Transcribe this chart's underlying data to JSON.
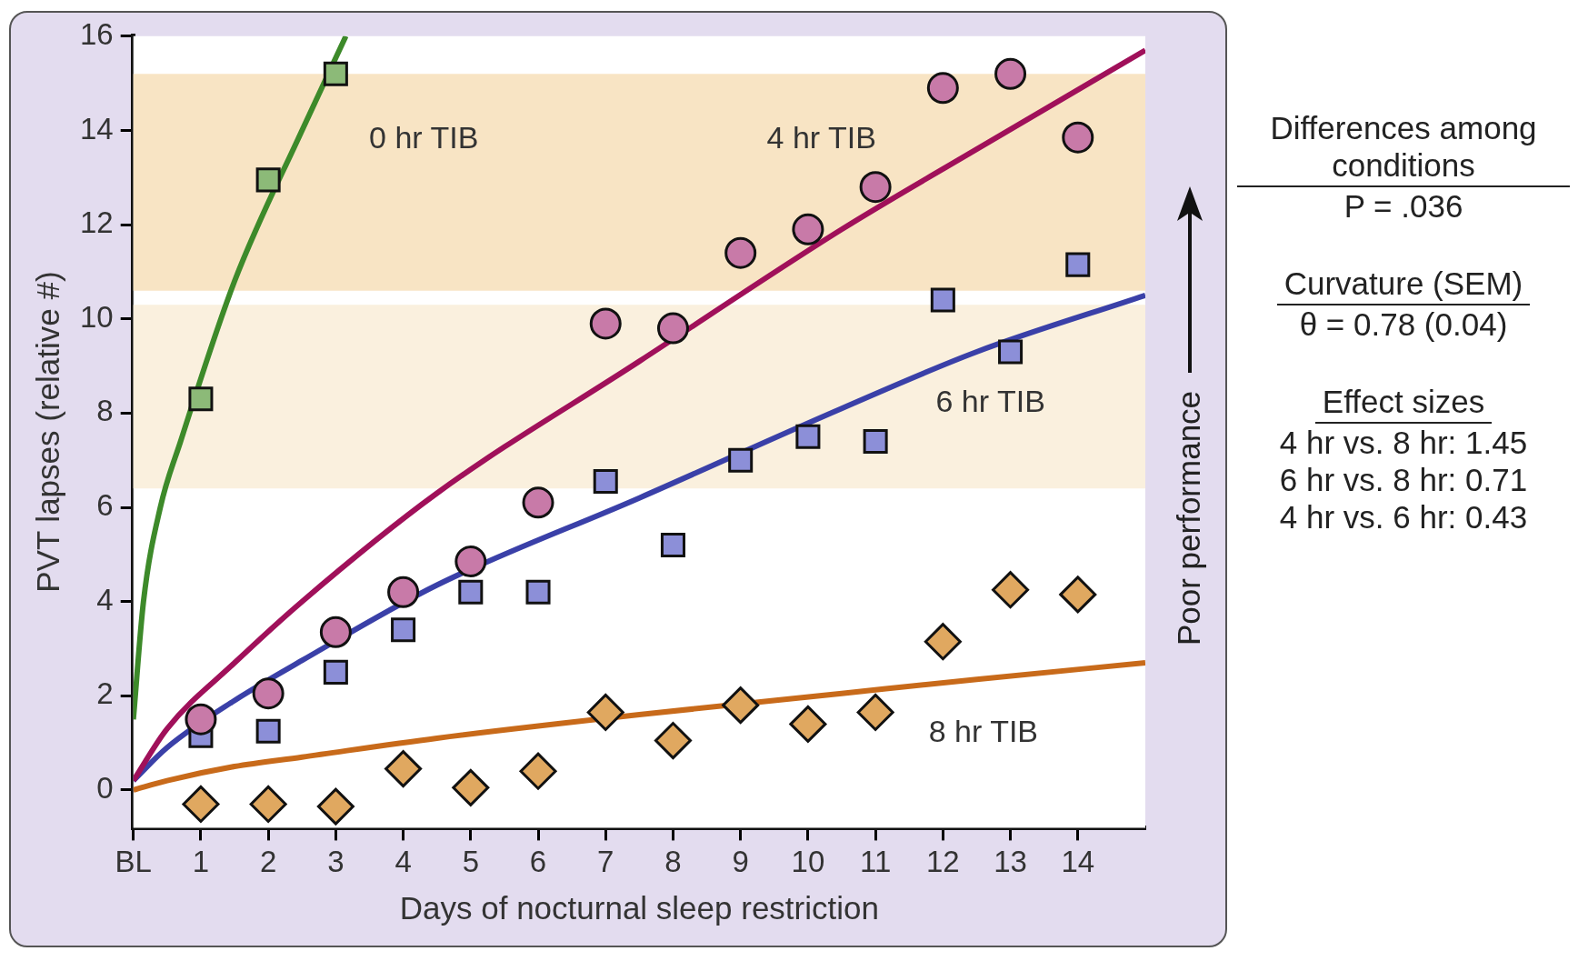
{
  "chart_data": {
    "type": "scatter",
    "xlabel": "Days of nocturnal sleep restriction",
    "ylabel": "PVT lapses (relative #)",
    "xlim": [
      0,
      15
    ],
    "xticks": [
      {
        "value": 0,
        "label": "BL"
      },
      1,
      2,
      3,
      4,
      5,
      6,
      7,
      8,
      9,
      10,
      11,
      12,
      13,
      14
    ],
    "ylim": [
      -0.8,
      16
    ],
    "yticks": [
      0,
      2,
      4,
      6,
      8,
      10,
      12,
      14,
      16
    ],
    "grid": false,
    "legend": false,
    "x": [
      1,
      2,
      3,
      4,
      5,
      6,
      7,
      8,
      9,
      10,
      11,
      12,
      13,
      14
    ],
    "bands": [
      {
        "axis": "y",
        "from": 10.6,
        "to": 15.2,
        "color": "#f8e4c4"
      },
      {
        "axis": "y",
        "from": 6.4,
        "to": 10.3,
        "color": "#faf0de"
      }
    ],
    "series": [
      {
        "type": "line",
        "color": "#3d8a2a",
        "marker": "none",
        "x": [
          0,
          0.15,
          0.4,
          0.7,
          1.5,
          2.5,
          3.15
        ],
        "values": [
          1.5,
          4,
          6,
          7.4,
          10.8,
          14,
          16
        ]
      },
      {
        "type": "line",
        "color": "#a0105a",
        "marker": "none",
        "x": [
          0,
          0.5,
          1.5,
          2.5,
          4.5,
          7.5,
          10.5,
          12.5,
          15
        ],
        "values": [
          0.2,
          1.3,
          2.7,
          4,
          6.3,
          9.1,
          11.9,
          13.6,
          15.7
        ]
      },
      {
        "type": "line",
        "color": "#3a40a8",
        "marker": "none",
        "x": [
          0,
          0.5,
          1.5,
          2.5,
          4.5,
          7.5,
          10.5,
          12.5,
          15
        ],
        "values": [
          0.2,
          0.9,
          1.9,
          2.75,
          4.35,
          6.2,
          8.1,
          9.3,
          10.5
        ]
      },
      {
        "type": "line",
        "color": "#c86a1a",
        "marker": "none",
        "x": [
          0,
          0.5,
          1.5,
          2.5,
          4.5,
          7.5,
          10.5,
          12.5,
          15
        ],
        "values": [
          0,
          0.2,
          0.5,
          0.7,
          1.1,
          1.6,
          2.05,
          2.35,
          2.7
        ]
      },
      {
        "color": "#8cba78",
        "marker": "square",
        "x": [
          1,
          2,
          3
        ],
        "values": [
          8.3,
          12.95,
          15.2
        ]
      },
      {
        "color": "#c87aa8",
        "marker": "circle",
        "values": [
          1.5,
          2.05,
          3.35,
          4.2,
          4.85,
          6.1,
          9.9,
          9.8,
          11.4,
          11.9,
          12.8,
          14.9,
          15.2,
          13.85
        ]
      },
      {
        "color": "#8c8fd8",
        "marker": "square",
        "values": [
          1.15,
          1.25,
          2.5,
          3.4,
          4.2,
          4.2,
          6.55,
          5.2,
          7,
          7.5,
          7.4,
          10.4,
          9.3,
          11.15
        ]
      },
      {
        "color": "#e0a860",
        "marker": "diamond",
        "values": [
          -0.3,
          -0.3,
          -0.35,
          0.45,
          0.05,
          0.4,
          1.65,
          1.05,
          1.8,
          1.4,
          1.65,
          3.15,
          4.25,
          4.15
        ]
      }
    ],
    "annotations": [
      "0 hr TIB",
      "4 hr TIB",
      "6 hr TIB",
      "8 hr TIB",
      "Poor performance",
      "Differences among conditions",
      "P = .036",
      "Curvature (SEM)",
      "θ = 0.78 (0.04)",
      "Effect sizes",
      "4 hr vs. 8 hr: 1.45",
      "6 hr vs. 8 hr: 0.71",
      "4 hr vs. 6 hr: 0.43"
    ]
  }
}
